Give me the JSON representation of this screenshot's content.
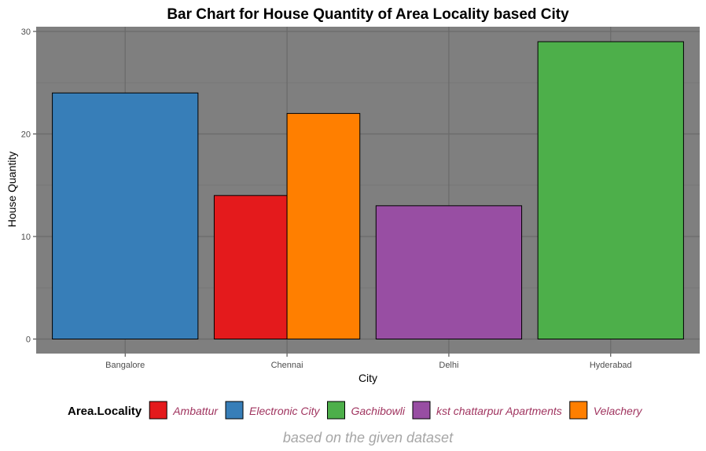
{
  "chart_data": {
    "type": "bar",
    "title": "Bar Chart for House Quantity of Area Locality based City",
    "xlabel": "City",
    "ylabel": "House Quantity",
    "caption": "based on the given dataset",
    "categories": [
      "Bangalore",
      "Chennai",
      "Delhi",
      "Hyderabad"
    ],
    "ylim": [
      0,
      30
    ],
    "yticks": [
      0,
      10,
      20,
      30
    ],
    "grid": true,
    "legend_position": "bottom",
    "legend_title": "Area.Locality",
    "series": [
      {
        "name": "Ambattur",
        "color": "#e41a1c"
      },
      {
        "name": "Electronic City",
        "color": "#377eb8"
      },
      {
        "name": "Gachibowli",
        "color": "#4daf4a"
      },
      {
        "name": "kst chattarpur Apartments",
        "color": "#984ea3"
      },
      {
        "name": "Velachery",
        "color": "#ff7f00"
      }
    ],
    "bars": [
      {
        "category": "Bangalore",
        "series": "Electronic City",
        "value": 24
      },
      {
        "category": "Chennai",
        "series": "Ambattur",
        "value": 14
      },
      {
        "category": "Chennai",
        "series": "Velachery",
        "value": 22
      },
      {
        "category": "Delhi",
        "series": "kst chattarpur Apartments",
        "value": 13
      },
      {
        "category": "Hyderabad",
        "series": "Gachibowli",
        "value": 29
      }
    ]
  }
}
